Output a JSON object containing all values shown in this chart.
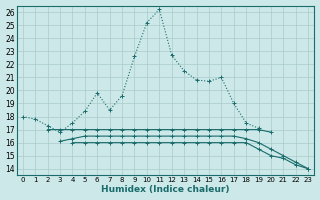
{
  "xlabel": "Humidex (Indice chaleur)",
  "background_color": "#cce8e8",
  "grid_color": "#aacccc",
  "line_color": "#1a6b6b",
  "xlim": [
    -0.5,
    23.5
  ],
  "ylim": [
    13.5,
    26.5
  ],
  "xticks": [
    0,
    1,
    2,
    3,
    4,
    5,
    6,
    7,
    8,
    9,
    10,
    11,
    12,
    13,
    14,
    15,
    16,
    17,
    18,
    19,
    20,
    21,
    22,
    23
  ],
  "yticks": [
    14,
    15,
    16,
    17,
    18,
    19,
    20,
    21,
    22,
    23,
    24,
    25,
    26
  ],
  "series": [
    {
      "x": [
        0,
        1,
        2,
        3,
        4,
        5,
        6,
        7,
        8,
        9,
        10,
        11,
        12,
        13,
        14,
        15,
        16,
        17,
        18,
        19,
        20,
        21,
        22,
        23
      ],
      "y": [
        18.0,
        17.8,
        17.3,
        16.8,
        17.5,
        18.4,
        19.8,
        18.5,
        19.6,
        22.6,
        25.2,
        26.2,
        22.7,
        21.5,
        20.8,
        20.7,
        21.0,
        19.0,
        17.5,
        17.1,
        null,
        null,
        null,
        null
      ],
      "style": "dotted",
      "marker": "+"
    },
    {
      "x": [
        2,
        3,
        4,
        5,
        6,
        7,
        8,
        9,
        10,
        11,
        12,
        13,
        14,
        15,
        16,
        17,
        18,
        19,
        20
      ],
      "y": [
        17.0,
        17.0,
        17.0,
        17.0,
        17.0,
        17.0,
        17.0,
        17.0,
        17.0,
        17.0,
        17.0,
        17.0,
        17.0,
        17.0,
        17.0,
        17.0,
        17.0,
        17.0,
        16.8
      ],
      "style": "solid",
      "marker": "+"
    },
    {
      "x": [
        3,
        4,
        5,
        6,
        7,
        8,
        9,
        10,
        11,
        12,
        13,
        14,
        15,
        16,
        17,
        18,
        19,
        20,
        21,
        22,
        23
      ],
      "y": [
        16.1,
        16.3,
        16.5,
        16.5,
        16.5,
        16.5,
        16.5,
        16.5,
        16.5,
        16.5,
        16.5,
        16.5,
        16.5,
        16.5,
        16.5,
        16.3,
        16.0,
        15.5,
        15.0,
        14.5,
        14.0
      ],
      "style": "solid",
      "marker": "+"
    },
    {
      "x": [
        4,
        5,
        6,
        7,
        8,
        9,
        10,
        11,
        12,
        13,
        14,
        15,
        16,
        17,
        18,
        19,
        20,
        21,
        22,
        23
      ],
      "y": [
        16.0,
        16.0,
        16.0,
        16.0,
        16.0,
        16.0,
        16.0,
        16.0,
        16.0,
        16.0,
        16.0,
        16.0,
        16.0,
        16.0,
        16.0,
        15.5,
        15.0,
        14.8,
        14.3,
        14.0
      ],
      "style": "solid",
      "marker": "+"
    }
  ]
}
